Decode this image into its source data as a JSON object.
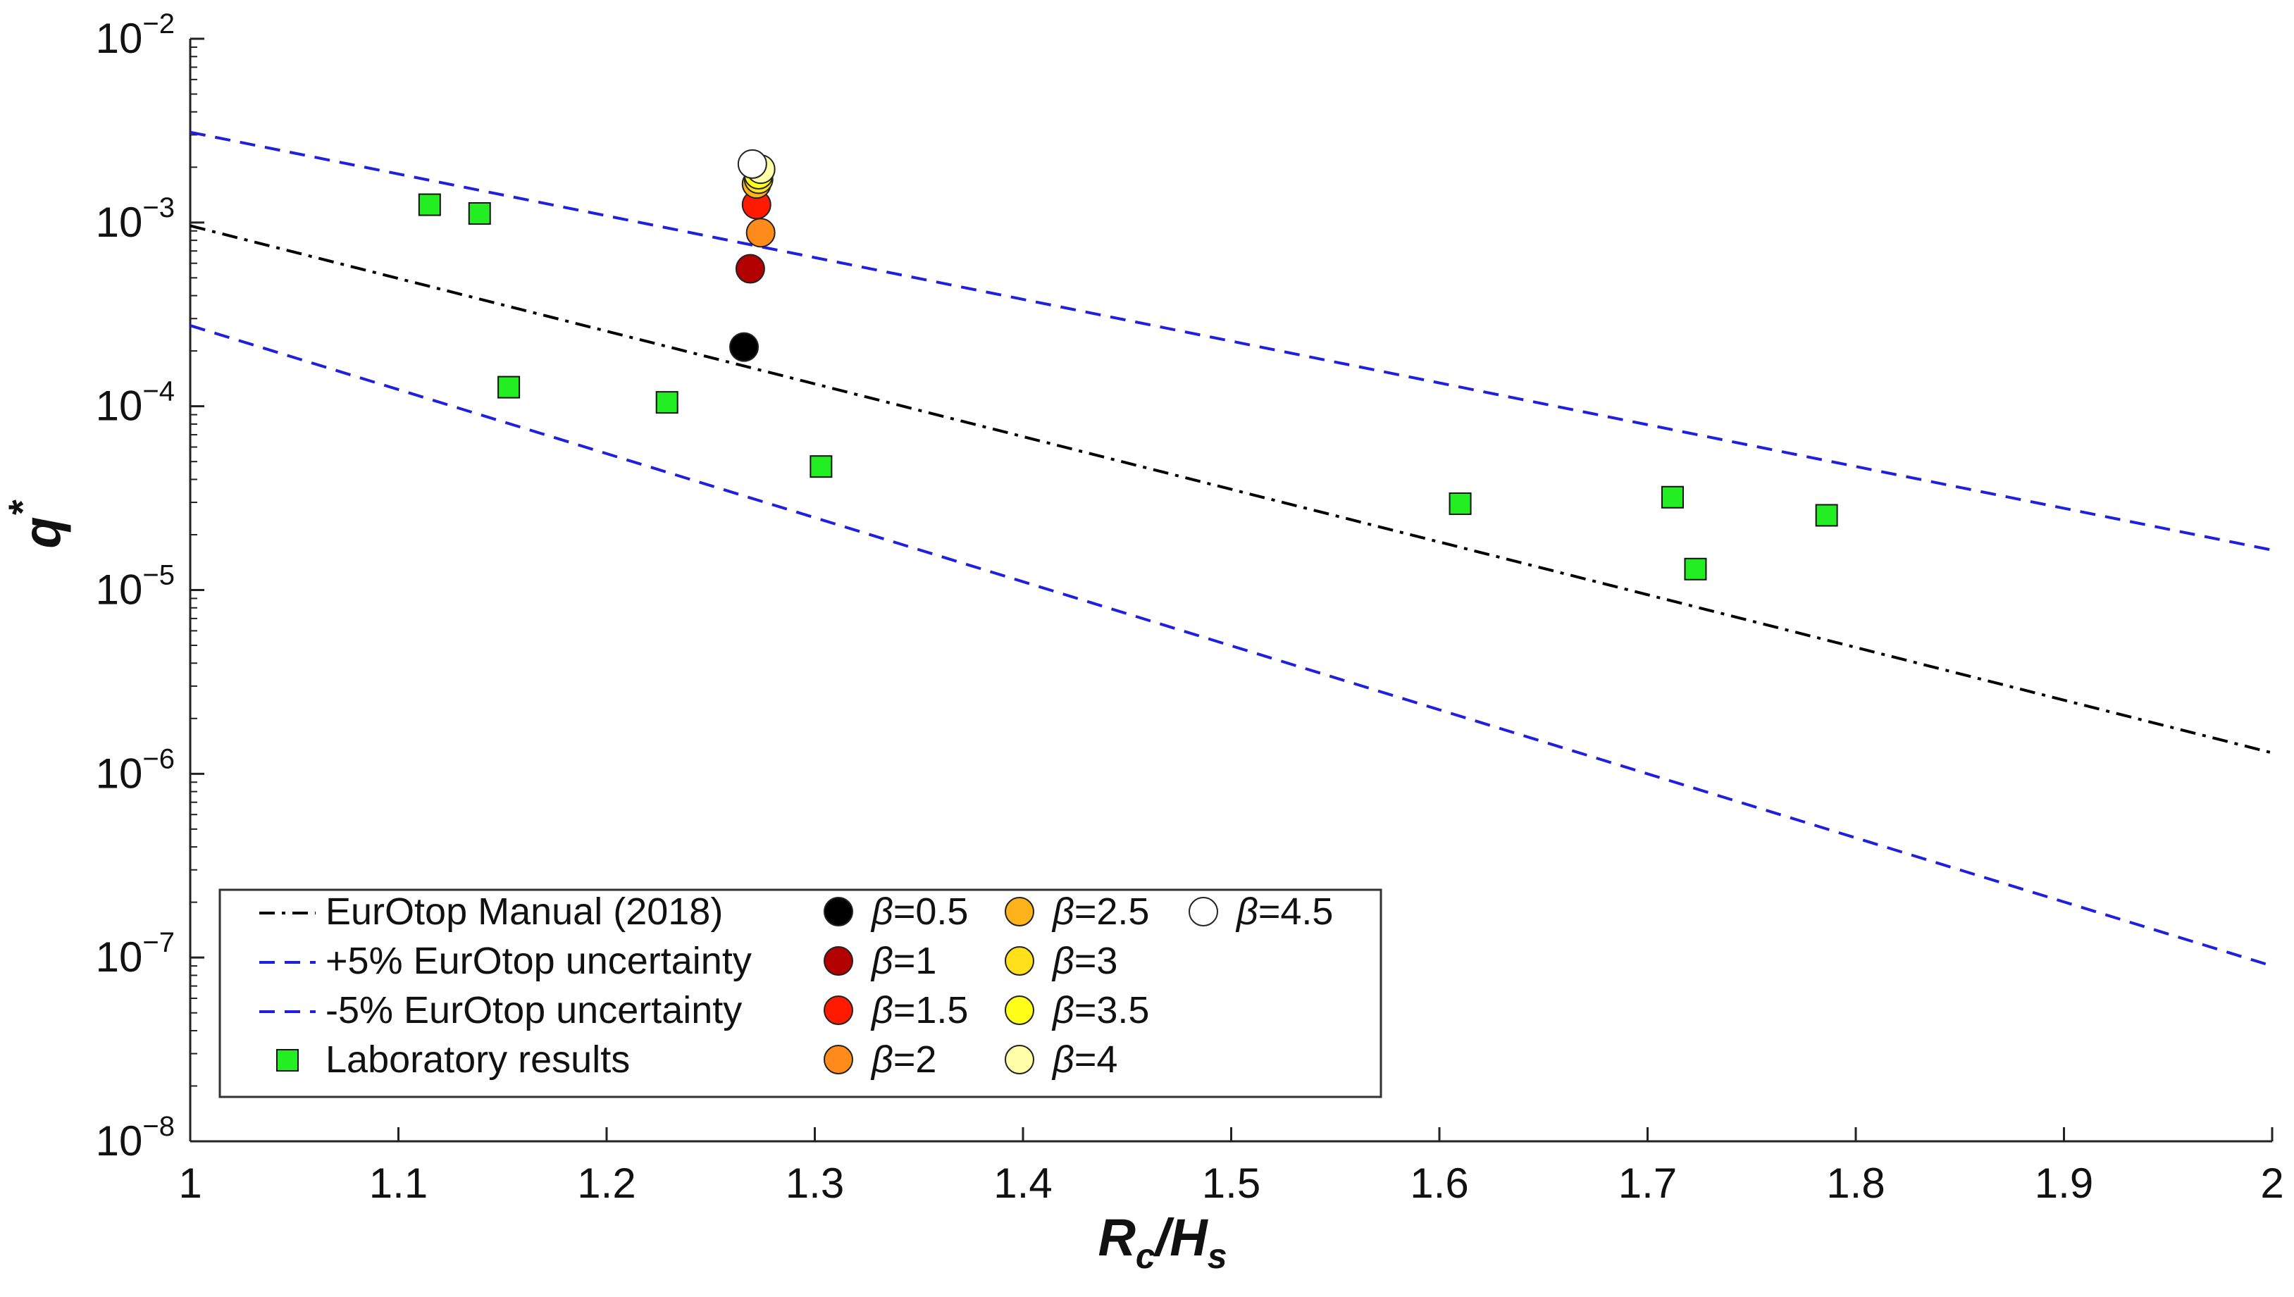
{
  "chart_data": {
    "type": "scatter",
    "title": "",
    "xlabel": {
      "main": "R",
      "sub1": "c",
      "mid": "/H",
      "sub2": "s"
    },
    "ylabel": {
      "main": "q",
      "sup": "*"
    },
    "xlim": [
      1,
      2
    ],
    "ylim": [
      1e-08,
      0.01
    ],
    "yscale": "log",
    "grid": false,
    "x_ticks": [
      "1",
      "1.1",
      "1.2",
      "1.3",
      "1.4",
      "1.5",
      "1.6",
      "1.7",
      "1.8",
      "1.9",
      "2"
    ],
    "y_ticks": [
      {
        "value": 0.01,
        "base": "10",
        "exp": "−2"
      },
      {
        "value": 0.001,
        "base": "10",
        "exp": "−3"
      },
      {
        "value": 0.0001,
        "base": "10",
        "exp": "−4"
      },
      {
        "value": 1e-05,
        "base": "10",
        "exp": "−5"
      },
      {
        "value": 1e-06,
        "base": "10",
        "exp": "−6"
      },
      {
        "value": 1e-07,
        "base": "10",
        "exp": "−7"
      },
      {
        "value": 1e-08,
        "base": "10",
        "exp": "−8"
      }
    ],
    "lines": [
      {
        "name": "EurOtop Manual (2018)",
        "color": "#000000",
        "style": "dashdot",
        "x": [
          1,
          2
        ],
        "y": [
          0.00096,
          1.3e-06
        ]
      },
      {
        "name": "+5% EurOtop uncertainty",
        "color": "#1f1fe0",
        "style": "dashed",
        "x": [
          1,
          2
        ],
        "y": [
          0.0031,
          1.65e-05
        ]
      },
      {
        "name": "-5% EurOtop uncertainty",
        "color": "#1f1fe0",
        "style": "dashed",
        "x": [
          1,
          2
        ],
        "y": [
          0.000275,
          9e-08
        ]
      }
    ],
    "laboratory": {
      "name": "Laboratory results",
      "color": "#22ee22",
      "x": [
        1.115,
        1.139,
        1.153,
        1.229,
        1.303,
        1.61,
        1.712,
        1.723,
        1.786
      ],
      "y": [
        0.00125,
        0.00112,
        0.000127,
        0.000105,
        4.7e-05,
        2.95e-05,
        3.2e-05,
        1.3e-05,
        2.55e-05
      ]
    },
    "beta_series": [
      {
        "name": "β=0.5",
        "beta": "β",
        "val": "=0.5",
        "color": "#000000",
        "x": 1.266,
        "y": 0.00021
      },
      {
        "name": "β=1",
        "beta": "β",
        "val": "=1",
        "color": "#b30000",
        "x": 1.269,
        "y": 0.00056
      },
      {
        "name": "β=1.5",
        "beta": "β",
        "val": "=1.5",
        "color": "#ff1a00",
        "x": 1.272,
        "y": 0.00125
      },
      {
        "name": "β=2",
        "beta": "β",
        "val": "=2",
        "color": "#ff8c1a",
        "x": 1.274,
        "y": 0.00088
      },
      {
        "name": "β=2.5",
        "beta": "β",
        "val": "=2.5",
        "color": "#ffb31a",
        "x": 1.272,
        "y": 0.00162
      },
      {
        "name": "β=3",
        "beta": "β",
        "val": "=3",
        "color": "#ffe01a",
        "x": 1.273,
        "y": 0.00172
      },
      {
        "name": "β=3.5",
        "beta": "β",
        "val": "=3.5",
        "color": "#ffff1a",
        "x": 1.273,
        "y": 0.00182
      },
      {
        "name": "β=4",
        "beta": "β",
        "val": "=4",
        "color": "#ffffaa",
        "x": 1.274,
        "y": 0.00195
      },
      {
        "name": "β=4.5",
        "beta": "β",
        "val": "=4.5",
        "color": "#ffffff",
        "x": 1.27,
        "y": 0.00208
      }
    ],
    "legend": {
      "placement": "bottom-left",
      "columns": 4,
      "entries": [
        "EurOtop Manual (2018)",
        "+5% EurOtop uncertainty",
        "-5% EurOtop uncertainty",
        "Laboratory results",
        "β=0.5",
        "β=1",
        "β=1.5",
        "β=2",
        "β=2.5",
        "β=3",
        "β=3.5",
        "β=4",
        "β=4.5"
      ]
    }
  }
}
